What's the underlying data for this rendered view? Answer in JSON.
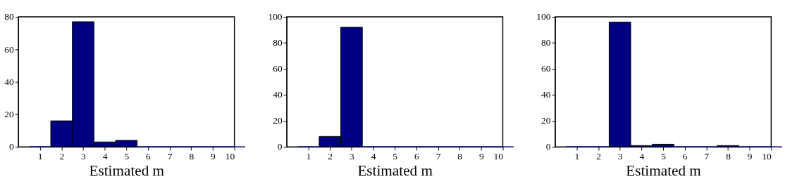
{
  "chart_data": [
    {
      "type": "bar",
      "x": [
        1,
        2,
        3,
        4,
        5,
        6,
        7,
        8,
        9,
        10
      ],
      "values": [
        0,
        16,
        77,
        3,
        4,
        0,
        0,
        0,
        0,
        0
      ],
      "color": "#000080",
      "xlabel": "Estimated m",
      "xlim": [
        0,
        10
      ],
      "xticks": [
        1,
        2,
        3,
        4,
        5,
        6,
        7,
        8,
        9,
        10
      ],
      "ylim": [
        0,
        80
      ],
      "yticks": [
        0,
        20,
        40,
        60,
        80
      ]
    },
    {
      "type": "bar",
      "x": [
        1,
        2,
        3,
        4,
        5,
        6,
        7,
        8,
        9,
        10
      ],
      "values": [
        0,
        8,
        92,
        0,
        0,
        0,
        0,
        0,
        0,
        0
      ],
      "color": "#000080",
      "xlabel": "Estimated m",
      "xlim": [
        0,
        10
      ],
      "xticks": [
        1,
        2,
        3,
        4,
        5,
        6,
        7,
        8,
        9,
        10
      ],
      "ylim": [
        0,
        100
      ],
      "yticks": [
        0,
        20,
        40,
        60,
        80,
        100
      ]
    },
    {
      "type": "bar",
      "x": [
        1,
        2,
        3,
        4,
        5,
        6,
        7,
        8,
        9,
        10
      ],
      "values": [
        0,
        0,
        96,
        1,
        2,
        0,
        0,
        1,
        0,
        0
      ],
      "color": "#000080",
      "xlabel": "Estimated m",
      "xlim": [
        0,
        10
      ],
      "xticks": [
        1,
        2,
        3,
        4,
        5,
        6,
        7,
        8,
        9,
        10
      ],
      "ylim": [
        0,
        100
      ],
      "yticks": [
        0,
        20,
        40,
        60,
        80,
        100
      ]
    }
  ]
}
